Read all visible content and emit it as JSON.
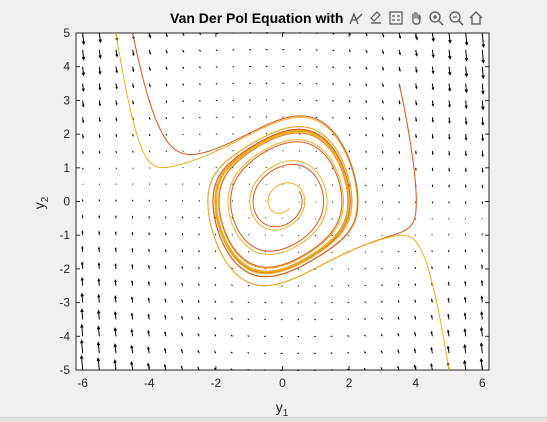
{
  "chart_data": {
    "type": "line",
    "title": "Van Der Pol Equation with",
    "xlabel": "y",
    "xlabel_sub": "1",
    "ylabel": "y",
    "ylabel_sub": "2",
    "xlim": [
      -6.2,
      6.2
    ],
    "ylim": [
      -5,
      5
    ],
    "xticks": [
      -6,
      -4,
      -2,
      0,
      2,
      4,
      6
    ],
    "yticks": [
      -5,
      -4,
      -3,
      -2,
      -1,
      0,
      1,
      2,
      3,
      4,
      5
    ],
    "grid": false,
    "mu": 0.3,
    "quiver_grid": {
      "x_step": 0.5,
      "y_step": 0.5
    },
    "colors": {
      "axes_bg": "#ffffff",
      "figure_bg": "#f0f0f0",
      "arrow": "#000000",
      "traj_red": "#d95319",
      "traj_yellow": "#edb120",
      "traj_orange": "#f08020"
    },
    "series": [
      {
        "color": "#edb120",
        "start": [
          -5,
          5
        ],
        "t_end": 40
      },
      {
        "color": "#d95319",
        "start": [
          -4.5,
          5
        ],
        "t_end": 40
      },
      {
        "color": "#d95319",
        "start": [
          3.5,
          3.5
        ],
        "t_end": 40
      },
      {
        "color": "#edb120",
        "start": [
          5,
          -5
        ],
        "t_end": 40
      },
      {
        "color": "#d95319",
        "start": [
          0.5,
          0.3
        ],
        "t_end": 40
      },
      {
        "color": "#edb120",
        "start": [
          0.2,
          -0.2
        ],
        "t_end": 40
      }
    ]
  },
  "toolbar": {
    "icons": [
      "data-tips-icon",
      "brush-icon",
      "legend-icon",
      "pan-icon",
      "zoom-in-icon",
      "zoom-out-icon",
      "home-icon"
    ]
  }
}
